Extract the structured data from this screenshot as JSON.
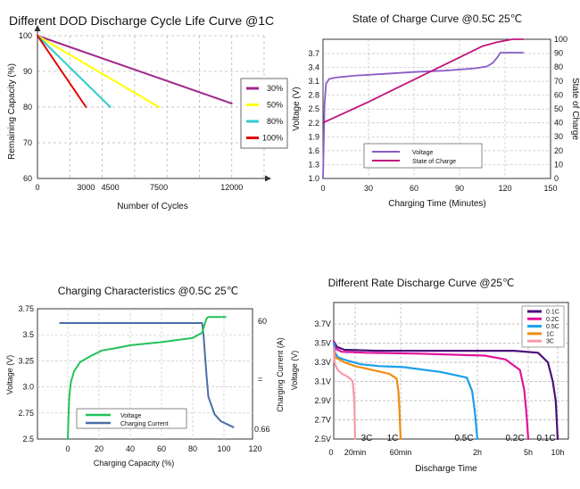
{
  "chart_data": [
    {
      "type": "line",
      "title": "Different DOD Discharge Cycle Life Curve @1C",
      "xlabel": "Number of Cycles",
      "ylabel": "Remaining Capacity (%)",
      "xlim": [
        0,
        14000
      ],
      "ylim": [
        60,
        100
      ],
      "x_ticks": [
        "0",
        "3000",
        "4500",
        "7500",
        "12000"
      ],
      "y_ticks": [
        "60",
        "70",
        "80",
        "90",
        "100"
      ],
      "grid": true,
      "legend_position": "right",
      "series": [
        {
          "name": "30%",
          "color": "#a0288c",
          "x": [
            0,
            12000
          ],
          "y": [
            100,
            81
          ]
        },
        {
          "name": "50%",
          "color": "#ffff00",
          "x": [
            0,
            7500
          ],
          "y": [
            100,
            80
          ]
        },
        {
          "name": "80%",
          "color": "#33cccc",
          "x": [
            0,
            4500
          ],
          "y": [
            100,
            80
          ]
        },
        {
          "name": "100%",
          "color": "#e00000",
          "x": [
            0,
            3000
          ],
          "y": [
            100,
            80
          ]
        }
      ]
    },
    {
      "type": "line",
      "title": "State of Charge Curve @0.5C 25℃",
      "xlabel": "Charging Time (Minutes)",
      "ylabel": "Voltage (V)",
      "y2label": "State of Charge",
      "xlim": [
        0,
        150
      ],
      "ylim": [
        1.0,
        3.9
      ],
      "y2lim": [
        0,
        100
      ],
      "x_ticks": [
        "0",
        "30",
        "60",
        "90",
        "120",
        "150"
      ],
      "y_ticks": [
        "1.0",
        "1.3",
        "1.6",
        "1.9",
        "2.2",
        "2.5",
        "2.8",
        "3.1",
        "3.4",
        "3.7"
      ],
      "y2_ticks": [
        "0",
        "10",
        "20",
        "30",
        "40",
        "50",
        "60",
        "70",
        "80",
        "90",
        "100"
      ],
      "grid": true,
      "legend_position": "bottom-center",
      "series": [
        {
          "name": "Voltage",
          "color": "#8a5cc8",
          "axis": "left",
          "x": [
            0,
            1,
            2,
            4,
            8,
            20,
            40,
            60,
            80,
            100,
            108,
            112,
            115,
            117,
            120,
            130,
            132
          ],
          "y": [
            1.0,
            2.6,
            3.05,
            3.15,
            3.18,
            3.22,
            3.26,
            3.3,
            3.33,
            3.38,
            3.42,
            3.5,
            3.62,
            3.72,
            3.72,
            3.72,
            3.72
          ]
        },
        {
          "name": "State of Charge",
          "color": "#c0147c",
          "axis": "right",
          "x": [
            0,
            30,
            60,
            90,
            105,
            115,
            125,
            132
          ],
          "y": [
            40,
            55,
            71,
            87,
            95,
            98,
            100,
            100
          ]
        }
      ]
    },
    {
      "type": "line",
      "title": "Charging Characteristics @0.5C 25℃",
      "xlabel": "Charging Capacity (%)",
      "ylabel": "Voltage (V)",
      "y2label": "Charging Current (A)",
      "xlim": [
        -20,
        120
      ],
      "ylim": [
        2.5,
        3.75
      ],
      "x_ticks": [
        "0",
        "20",
        "40",
        "60",
        "80",
        "100",
        "120"
      ],
      "y_ticks": [
        "2.5",
        "2.75",
        "3.0",
        "3.25",
        "3.5",
        "3.75"
      ],
      "y2_ticks": [
        "60",
        "=",
        "0.66"
      ],
      "grid": true,
      "legend_position": "bottom-left",
      "series": [
        {
          "name": "Voltage",
          "color": "#22c25a",
          "axis": "left",
          "x": [
            0,
            0.5,
            1,
            2,
            4,
            8,
            15,
            22,
            30,
            40,
            60,
            80,
            86,
            88,
            89,
            90,
            95,
            101
          ],
          "y": [
            2.5,
            2.75,
            2.92,
            3.05,
            3.15,
            3.24,
            3.3,
            3.35,
            3.37,
            3.4,
            3.43,
            3.47,
            3.52,
            3.62,
            3.66,
            3.67,
            3.67,
            3.67
          ]
        },
        {
          "name": "Charging Current",
          "color": "#4a6ea6",
          "axis": "right",
          "x": [
            -5,
            0,
            20,
            40,
            60,
            80,
            86,
            87,
            88,
            89,
            90,
            94,
            98,
            106
          ],
          "y": [
            60,
            60,
            60,
            60,
            60,
            60,
            60,
            52,
            40,
            28,
            18,
            8,
            4,
            0.66
          ]
        }
      ]
    },
    {
      "type": "line",
      "title": "Different Rate Discharge Curve @25℃",
      "xlabel": "Discharge Time",
      "ylabel": "Voltage (V)",
      "ylim": [
        2.5,
        3.8
      ],
      "x_ticks": [
        "0",
        "20min",
        "60min",
        "2h",
        "5h",
        "10h"
      ],
      "y_ticks": [
        "2.5V",
        "2.7V",
        "2.9V",
        "3.1V",
        "3.3V",
        "3.5V",
        "3.7V"
      ],
      "grid": true,
      "legend_position": "top-right",
      "series": [
        {
          "name": "0.1C",
          "label": "0.1C",
          "color": "#4b0f7a",
          "x": [
            0,
            0.3,
            1,
            4,
            10,
            25,
            40,
            50,
            55,
            58,
            60
          ],
          "y": [
            3.52,
            3.46,
            3.43,
            3.42,
            3.42,
            3.42,
            3.4,
            3.3,
            3.1,
            2.9,
            2.5
          ]
        },
        {
          "name": "0.2C",
          "label": "0.2C",
          "color": "#e0149c",
          "x": [
            0,
            0.3,
            1,
            4,
            10,
            20,
            30,
            37,
            39,
            40,
            41
          ],
          "y": [
            3.52,
            3.44,
            3.41,
            3.4,
            3.39,
            3.37,
            3.33,
            3.22,
            3.02,
            2.8,
            2.5
          ]
        },
        {
          "name": "0.5C",
          "label": "0.5C",
          "color": "#1aa0e8",
          "x": [
            0,
            0.3,
            1,
            3,
            6,
            10,
            15,
            22,
            27,
            28,
            28.5,
            29
          ],
          "y": [
            3.5,
            3.4,
            3.35,
            3.32,
            3.28,
            3.26,
            3.25,
            3.2,
            3.14,
            3.0,
            2.8,
            2.5
          ]
        },
        {
          "name": "1C",
          "label": "1C",
          "color": "#f08c14",
          "x": [
            0,
            0.3,
            1,
            2,
            4,
            7,
            10,
            11.3,
            11.6,
            11.8,
            12
          ],
          "y": [
            3.45,
            3.35,
            3.33,
            3.3,
            3.26,
            3.22,
            3.18,
            3.13,
            3.0,
            2.8,
            2.5
          ]
        },
        {
          "name": "3C",
          "label": "3C",
          "color": "#f59aaa",
          "x": [
            0,
            0.2,
            0.5,
            1,
            2,
            3,
            4,
            4.6,
            5,
            5.2
          ],
          "y": [
            3.45,
            3.3,
            3.26,
            3.22,
            3.18,
            3.16,
            3.13,
            3.1,
            2.9,
            2.5
          ]
        }
      ]
    }
  ]
}
